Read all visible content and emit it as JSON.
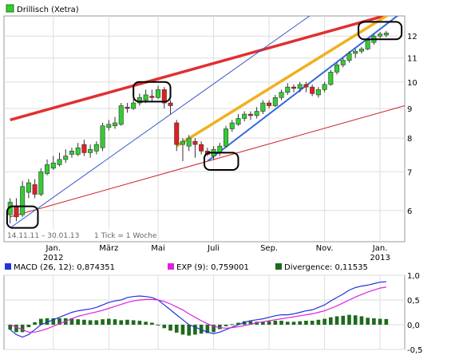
{
  "chart_data": [
    {
      "type": "candlestick",
      "title": "Drillisch (Xetra)",
      "legend_color": "#33cc33",
      "period_label": "14.11.11 – 30.01.13",
      "tick_label": "1 Tick = 1 Woche",
      "y_scale": "log",
      "ylim": [
        5.3,
        13.0
      ],
      "y_ticks": [
        "6",
        "7",
        "8",
        "9",
        "10",
        "11",
        "12"
      ],
      "x_ticks": [
        {
          "label": "Jan.",
          "sublabel": "2012",
          "t": 7
        },
        {
          "label": "März",
          "sublabel": "",
          "t": 16
        },
        {
          "label": "Mai",
          "sublabel": "",
          "t": 24
        },
        {
          "label": "Juli",
          "sublabel": "",
          "t": 33
        },
        {
          "label": "Sep.",
          "sublabel": "",
          "t": 42
        },
        {
          "label": "Nov.",
          "sublabel": "",
          "t": 51
        },
        {
          "label": "Jan.",
          "sublabel": "2013",
          "t": 60
        }
      ],
      "candles": [
        [
          5.9,
          6.2,
          5.7,
          6.3
        ],
        [
          6.1,
          5.85,
          5.75,
          6.3
        ],
        [
          5.9,
          6.6,
          5.85,
          6.75
        ],
        [
          6.45,
          6.7,
          6.3,
          6.8
        ],
        [
          6.65,
          6.4,
          6.3,
          6.8
        ],
        [
          6.4,
          7.0,
          6.35,
          7.1
        ],
        [
          6.95,
          7.2,
          6.9,
          7.35
        ],
        [
          7.1,
          7.25,
          7.05,
          7.45
        ],
        [
          7.2,
          7.35,
          7.15,
          7.55
        ],
        [
          7.35,
          7.45,
          7.25,
          7.65
        ],
        [
          7.5,
          7.6,
          7.4,
          7.7
        ],
        [
          7.5,
          7.7,
          7.45,
          7.85
        ],
        [
          7.8,
          7.55,
          7.45,
          7.95
        ],
        [
          7.55,
          7.65,
          7.4,
          7.8
        ],
        [
          7.6,
          7.8,
          7.5,
          7.9
        ],
        [
          7.7,
          8.4,
          7.6,
          8.5
        ],
        [
          8.35,
          8.45,
          8.25,
          8.6
        ],
        [
          8.4,
          8.5,
          8.3,
          8.7
        ],
        [
          8.45,
          9.1,
          8.4,
          9.2
        ],
        [
          9.05,
          9.0,
          8.85,
          9.2
        ],
        [
          9.0,
          9.2,
          8.95,
          9.35
        ],
        [
          9.2,
          9.4,
          9.1,
          9.55
        ],
        [
          9.3,
          9.5,
          9.2,
          9.7
        ],
        [
          9.45,
          9.4,
          9.25,
          9.7
        ],
        [
          9.4,
          9.7,
          9.35,
          9.85
        ],
        [
          9.7,
          9.2,
          9.0,
          9.8
        ],
        [
          9.2,
          9.1,
          8.8,
          9.3
        ],
        [
          8.5,
          7.8,
          7.6,
          8.6
        ],
        [
          7.8,
          7.9,
          7.3,
          8.0
        ],
        [
          7.75,
          8.0,
          7.6,
          8.1
        ],
        [
          7.9,
          7.8,
          7.4,
          8.0
        ],
        [
          7.8,
          7.6,
          7.5,
          7.9
        ],
        [
          7.6,
          7.5,
          7.45,
          7.7
        ],
        [
          7.45,
          7.65,
          7.35,
          7.75
        ],
        [
          7.55,
          7.75,
          7.45,
          7.85
        ],
        [
          7.75,
          8.3,
          7.7,
          8.4
        ],
        [
          8.3,
          8.5,
          8.2,
          8.6
        ],
        [
          8.45,
          8.65,
          8.4,
          8.8
        ],
        [
          8.65,
          8.8,
          8.55,
          8.9
        ],
        [
          8.8,
          8.75,
          8.6,
          8.9
        ],
        [
          8.75,
          8.9,
          8.65,
          9.05
        ],
        [
          8.9,
          9.2,
          8.8,
          9.3
        ],
        [
          9.2,
          9.1,
          9.0,
          9.3
        ],
        [
          9.1,
          9.4,
          9.05,
          9.5
        ],
        [
          9.4,
          9.6,
          9.3,
          9.7
        ],
        [
          9.6,
          9.8,
          9.5,
          9.95
        ],
        [
          9.8,
          9.75,
          9.6,
          9.9
        ],
        [
          9.75,
          9.9,
          9.6,
          10.0
        ],
        [
          9.9,
          9.8,
          9.6,
          10.0
        ],
        [
          9.8,
          9.55,
          9.45,
          9.9
        ],
        [
          9.5,
          9.7,
          9.4,
          9.8
        ],
        [
          9.7,
          9.9,
          9.6,
          10.0
        ],
        [
          9.9,
          10.4,
          9.85,
          10.5
        ],
        [
          10.4,
          10.7,
          10.3,
          10.8
        ],
        [
          10.7,
          10.9,
          10.6,
          11.0
        ],
        [
          10.9,
          11.2,
          10.8,
          11.3
        ],
        [
          11.2,
          11.3,
          11.0,
          11.4
        ],
        [
          11.3,
          11.4,
          11.2,
          11.5
        ],
        [
          11.4,
          11.8,
          11.35,
          11.9
        ],
        [
          11.7,
          12.0,
          11.6,
          12.1
        ],
        [
          12.0,
          12.1,
          11.9,
          12.2
        ],
        [
          12.05,
          12.15,
          11.95,
          12.25
        ]
      ],
      "trend_lines": [
        {
          "name": "upper-resistance",
          "color": "#e03030",
          "p1": [
            0,
            8.6
          ],
          "p2": [
            64,
            13.3
          ]
        },
        {
          "name": "long-support",
          "color": "#cc2222",
          "p1": [
            0,
            5.85
          ],
          "p2": [
            64,
            9.1
          ]
        },
        {
          "name": "channel-top",
          "color": "#f0b020",
          "p1": [
            27,
            7.75
          ],
          "p2": [
            64,
            13.6
          ]
        },
        {
          "name": "channel-bottom",
          "color": "#3366dd",
          "p1": [
            32,
            7.3
          ],
          "p2": [
            64,
            13.3
          ]
        },
        {
          "name": "first-uptrend",
          "color": "#3355cc",
          "p1": [
            0,
            5.6
          ],
          "p2": [
            52,
            13.8
          ]
        }
      ],
      "highlight_boxes": [
        {
          "name": "low-jan-2012",
          "t0": -0.5,
          "t1": 4.5,
          "y0": 5.6,
          "y1": 6.1
        },
        {
          "name": "high-may-2012",
          "t0": 20,
          "t1": 26,
          "y0": 9.25,
          "y1": 10.0
        },
        {
          "name": "low-aug-2012",
          "t0": 31.5,
          "t1": 37,
          "y0": 7.05,
          "y1": 7.55
        },
        {
          "name": "high-jan-2013",
          "t0": 56.5,
          "t1": 63.5,
          "y0": 11.85,
          "y1": 12.7
        }
      ]
    },
    {
      "type": "line",
      "indicator": "MACD",
      "ylim": [
        -0.5,
        1.0
      ],
      "y_ticks": [
        "1,0",
        "0,5",
        "0,0",
        "-0,5"
      ],
      "series": [
        {
          "name": "MACD (26, 12): 0,874351",
          "color": "#2233dd",
          "values": [
            -0.1,
            -0.2,
            -0.25,
            -0.2,
            -0.1,
            0.0,
            0.05,
            0.1,
            0.15,
            0.2,
            0.25,
            0.28,
            0.3,
            0.32,
            0.35,
            0.4,
            0.45,
            0.48,
            0.5,
            0.55,
            0.57,
            0.58,
            0.57,
            0.55,
            0.5,
            0.4,
            0.3,
            0.2,
            0.1,
            0.0,
            -0.05,
            -0.1,
            -0.15,
            -0.18,
            -0.15,
            -0.1,
            -0.05,
            0.0,
            0.05,
            0.08,
            0.1,
            0.12,
            0.15,
            0.18,
            0.2,
            0.2,
            0.22,
            0.25,
            0.28,
            0.3,
            0.35,
            0.4,
            0.48,
            0.55,
            0.62,
            0.7,
            0.75,
            0.78,
            0.8,
            0.83,
            0.86,
            0.87
          ]
        },
        {
          "name": "EXP (9): 0,759001",
          "color": "#dd22dd",
          "values": [
            0.0,
            -0.05,
            -0.1,
            -0.15,
            -0.15,
            -0.12,
            -0.08,
            -0.03,
            0.02,
            0.07,
            0.12,
            0.17,
            0.2,
            0.23,
            0.26,
            0.29,
            0.33,
            0.37,
            0.41,
            0.45,
            0.48,
            0.5,
            0.51,
            0.51,
            0.5,
            0.47,
            0.42,
            0.36,
            0.3,
            0.22,
            0.15,
            0.08,
            0.02,
            -0.03,
            -0.06,
            -0.07,
            -0.06,
            -0.04,
            -0.02,
            0.01,
            0.04,
            0.06,
            0.08,
            0.1,
            0.12,
            0.14,
            0.16,
            0.18,
            0.2,
            0.22,
            0.25,
            0.28,
            0.33,
            0.38,
            0.44,
            0.5,
            0.56,
            0.61,
            0.66,
            0.7,
            0.74,
            0.76
          ]
        }
      ]
    },
    {
      "type": "bar",
      "indicator": "Divergence",
      "series": [
        {
          "name": "Divergence: 0,11535",
          "color": "#1d6b1d",
          "values": [
            -0.1,
            -0.15,
            -0.15,
            -0.05,
            0.05,
            0.12,
            0.13,
            0.13,
            0.13,
            0.13,
            0.13,
            0.11,
            0.1,
            0.09,
            0.09,
            0.11,
            0.12,
            0.11,
            0.09,
            0.1,
            0.09,
            0.08,
            0.06,
            0.04,
            0.0,
            -0.07,
            -0.12,
            -0.16,
            -0.2,
            -0.22,
            -0.2,
            -0.18,
            -0.17,
            -0.15,
            -0.09,
            -0.03,
            0.01,
            0.04,
            0.07,
            0.07,
            0.06,
            0.06,
            0.07,
            0.08,
            0.08,
            0.06,
            0.06,
            0.07,
            0.08,
            0.08,
            0.1,
            0.12,
            0.15,
            0.17,
            0.18,
            0.2,
            0.19,
            0.17,
            0.14,
            0.13,
            0.12,
            0.115
          ]
        }
      ]
    }
  ]
}
